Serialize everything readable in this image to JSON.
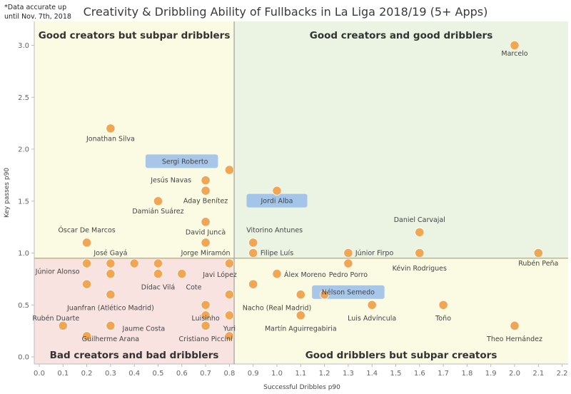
{
  "note_lines": [
    "*Data accurate up",
    "until Nov. 7th, 2018"
  ],
  "chart_data": {
    "type": "scatter",
    "title": "Creativity & Dribbling Ability of Fullbacks in La Liga 2018/19 (5+ Apps)",
    "xlabel": "Successful Dribbles p90",
    "ylabel": "Key passes p90",
    "xlim": [
      -0.05,
      2.2
    ],
    "ylim": [
      -0.05,
      3.2
    ],
    "x_ticks": [
      "0.0",
      "0.1",
      "0.2",
      "0.3",
      "0.4",
      "0.5",
      "0.6",
      "0.7",
      "0.8",
      "0.9",
      "1.0",
      "1.1",
      "1.2",
      "1.3",
      "1.4",
      "1.5",
      "1.6",
      "1.7",
      "1.8",
      "1.9",
      "2.0",
      "2.1",
      "2.2"
    ],
    "y_ticks": [
      "0.0",
      "0.5",
      "1.0",
      "1.5",
      "2.0",
      "2.5",
      "3.0"
    ],
    "x_divider": 0.82,
    "y_divider": 0.95,
    "quadrants": {
      "top_left": "Good creators but subpar dribblers",
      "top_right": "Good creators and good dribblers",
      "bottom_left": "Bad creators and bad dribblers",
      "bottom_right": "Good dribblers but subpar creators"
    },
    "quadrant_colors": {
      "top_left": "#fbfbe3",
      "top_right": "#ebf3e3",
      "bottom_left": "#f9e3e1",
      "bottom_right": "#fbfbe3"
    },
    "point_color": "#f0a653",
    "highlight_color": "#9dc0e8",
    "labels": [
      {
        "text": "Marcelo",
        "x": 2.0,
        "y": 2.9,
        "anchor": "middle"
      },
      {
        "text": "Jonathan Silva",
        "x": 0.3,
        "y": 2.08,
        "anchor": "middle"
      },
      {
        "text": "Sergi Roberto",
        "x": 0.71,
        "y": 1.86,
        "anchor": "end",
        "highlight": true
      },
      {
        "text": "Jesús Navas",
        "x": 0.64,
        "y": 1.68,
        "anchor": "end"
      },
      {
        "text": "Aday Benítez",
        "x": 0.7,
        "y": 1.48,
        "anchor": "middle"
      },
      {
        "text": "Damián Suárez",
        "x": 0.5,
        "y": 1.38,
        "anchor": "middle"
      },
      {
        "text": "Jordi Alba",
        "x": 1.0,
        "y": 1.48,
        "anchor": "middle",
        "highlight": true
      },
      {
        "text": "Daniel Carvajal",
        "x": 1.6,
        "y": 1.3,
        "anchor": "middle"
      },
      {
        "text": "Óscar De Marcos",
        "x": 0.2,
        "y": 1.2,
        "anchor": "middle"
      },
      {
        "text": "David Juncà",
        "x": 0.7,
        "y": 1.18,
        "anchor": "middle"
      },
      {
        "text": "Vitorino Antunes",
        "x": 0.99,
        "y": 1.2,
        "anchor": "middle"
      },
      {
        "text": "José Gayá",
        "x": 0.3,
        "y": 0.98,
        "anchor": "middle"
      },
      {
        "text": "Jorge Miramón",
        "x": 0.7,
        "y": 0.98,
        "anchor": "middle"
      },
      {
        "text": "Filipe Luís",
        "x": 1.0,
        "y": 0.98,
        "anchor": "middle"
      },
      {
        "text": "Júnior Firpo",
        "x": 1.33,
        "y": 0.98,
        "anchor": "start"
      },
      {
        "text": "Júnior Alonso",
        "x": 0.17,
        "y": 0.8,
        "anchor": "end"
      },
      {
        "text": "Kévin Rodrigues",
        "x": 1.6,
        "y": 0.83,
        "anchor": "middle"
      },
      {
        "text": "Rubén Peña",
        "x": 2.1,
        "y": 0.88,
        "anchor": "middle"
      },
      {
        "text": "Javi López",
        "x": 0.76,
        "y": 0.77,
        "anchor": "middle"
      },
      {
        "text": "Álex Moreno",
        "x": 1.03,
        "y": 0.77,
        "anchor": "start"
      },
      {
        "text": "Pedro Porro",
        "x": 1.3,
        "y": 0.77,
        "anchor": "middle"
      },
      {
        "text": "Dídac Vilá",
        "x": 0.5,
        "y": 0.65,
        "anchor": "middle"
      },
      {
        "text": "Cote",
        "x": 0.65,
        "y": 0.65,
        "anchor": "middle"
      },
      {
        "text": "Nélson Semedo",
        "x": 1.3,
        "y": 0.6,
        "anchor": "middle",
        "highlight": true
      },
      {
        "text": "Juanfran (Atlético Madrid)",
        "x": 0.3,
        "y": 0.45,
        "anchor": "middle"
      },
      {
        "text": "Nacho (Real Madrid)",
        "x": 1.0,
        "y": 0.45,
        "anchor": "middle"
      },
      {
        "text": "Rubén Duarte",
        "x": 0.07,
        "y": 0.35,
        "anchor": "middle"
      },
      {
        "text": "Luisinho",
        "x": 0.7,
        "y": 0.35,
        "anchor": "middle"
      },
      {
        "text": "Luis Advíncula",
        "x": 1.4,
        "y": 0.35,
        "anchor": "middle"
      },
      {
        "text": "Toño",
        "x": 1.7,
        "y": 0.35,
        "anchor": "middle"
      },
      {
        "text": "Jaume Costa",
        "x": 0.35,
        "y": 0.25,
        "anchor": "start"
      },
      {
        "text": "Yuri",
        "x": 0.8,
        "y": 0.25,
        "anchor": "middle"
      },
      {
        "text": "Martín Aguirregabiria",
        "x": 1.1,
        "y": 0.25,
        "anchor": "middle"
      },
      {
        "text": "Guilherme Arana",
        "x": 0.3,
        "y": 0.15,
        "anchor": "middle"
      },
      {
        "text": "Cristiano Piccini",
        "x": 0.7,
        "y": 0.15,
        "anchor": "middle"
      },
      {
        "text": "Theo Hernández",
        "x": 2.0,
        "y": 0.15,
        "anchor": "middle"
      }
    ],
    "points": [
      {
        "x": 2.0,
        "y": 3.0
      },
      {
        "x": 0.3,
        "y": 2.2
      },
      {
        "x": 0.8,
        "y": 1.8
      },
      {
        "x": 0.7,
        "y": 1.7
      },
      {
        "x": 0.7,
        "y": 1.6
      },
      {
        "x": 0.5,
        "y": 1.5
      },
      {
        "x": 1.0,
        "y": 1.6
      },
      {
        "x": 1.6,
        "y": 1.2
      },
      {
        "x": 0.7,
        "y": 1.3
      },
      {
        "x": 0.2,
        "y": 1.1
      },
      {
        "x": 0.7,
        "y": 1.1
      },
      {
        "x": 0.9,
        "y": 1.1
      },
      {
        "x": 0.9,
        "y": 1.0
      },
      {
        "x": 1.3,
        "y": 1.0
      },
      {
        "x": 1.6,
        "y": 1.0
      },
      {
        "x": 2.1,
        "y": 1.0
      },
      {
        "x": 0.2,
        "y": 0.9
      },
      {
        "x": 0.3,
        "y": 0.9
      },
      {
        "x": 0.4,
        "y": 0.9
      },
      {
        "x": 0.5,
        "y": 0.9
      },
      {
        "x": 0.8,
        "y": 0.9
      },
      {
        "x": 1.3,
        "y": 0.9
      },
      {
        "x": 0.3,
        "y": 0.8
      },
      {
        "x": 0.5,
        "y": 0.8
      },
      {
        "x": 0.6,
        "y": 0.8
      },
      {
        "x": 1.0,
        "y": 0.8
      },
      {
        "x": 0.2,
        "y": 0.7
      },
      {
        "x": 0.9,
        "y": 0.7
      },
      {
        "x": 0.3,
        "y": 0.6
      },
      {
        "x": 0.8,
        "y": 0.6
      },
      {
        "x": 1.1,
        "y": 0.6
      },
      {
        "x": 1.2,
        "y": 0.6
      },
      {
        "x": 0.7,
        "y": 0.5
      },
      {
        "x": 1.4,
        "y": 0.5
      },
      {
        "x": 1.7,
        "y": 0.5
      },
      {
        "x": 0.7,
        "y": 0.4
      },
      {
        "x": 0.8,
        "y": 0.4
      },
      {
        "x": 1.1,
        "y": 0.4
      },
      {
        "x": 0.1,
        "y": 0.3
      },
      {
        "x": 0.3,
        "y": 0.3
      },
      {
        "x": 0.7,
        "y": 0.3
      },
      {
        "x": 2.0,
        "y": 0.3
      },
      {
        "x": 0.2,
        "y": 0.2
      },
      {
        "x": 0.8,
        "y": 0.2
      }
    ]
  }
}
